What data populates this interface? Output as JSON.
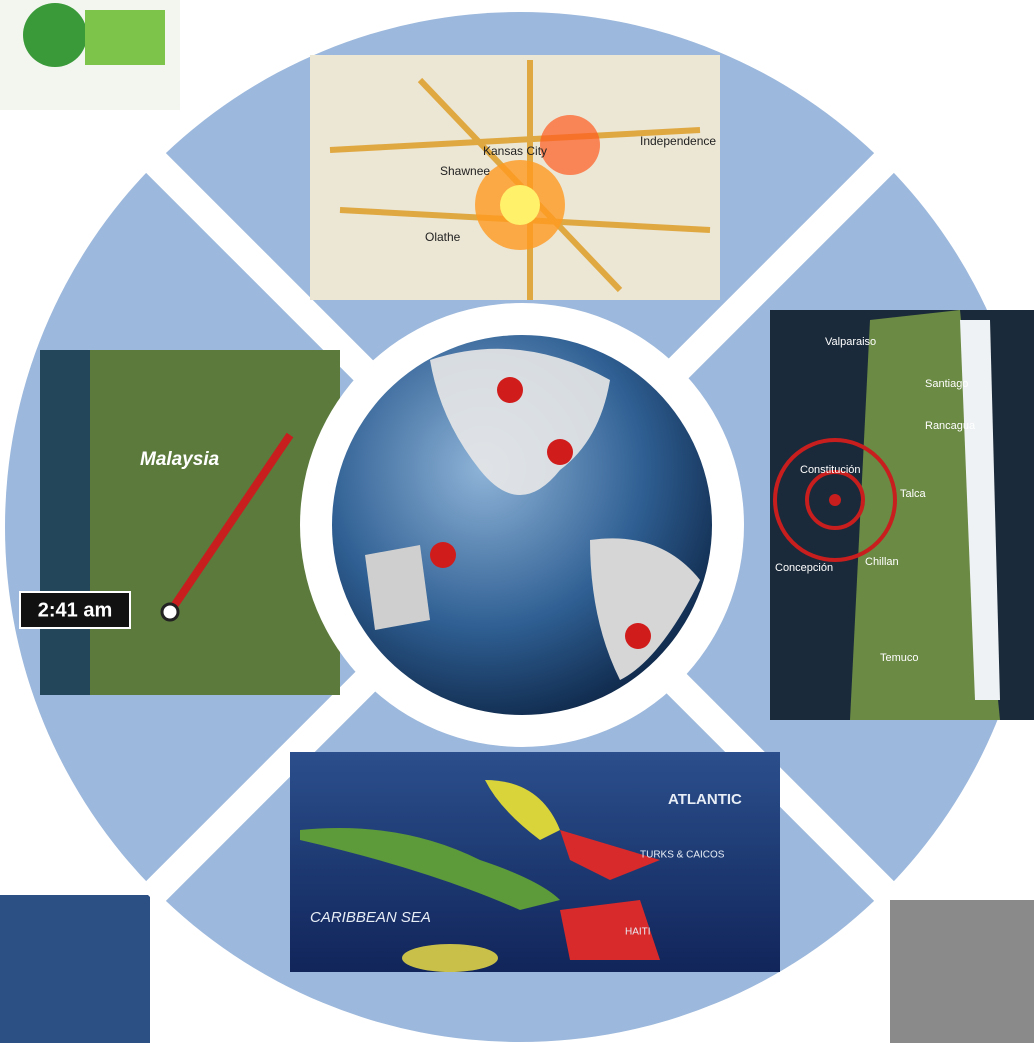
{
  "top_map": {
    "labels": [
      "Kansas City",
      "Independence",
      "Shawnee",
      "Olathe"
    ]
  },
  "left_map": {
    "place": "Malaysia",
    "time": "2:41 am"
  },
  "right_map": {
    "labels": [
      "Valparaiso",
      "Santiago",
      "Rancagua",
      "Talca",
      "Constitución",
      "Concepción",
      "Chillan",
      "Temuco"
    ]
  },
  "bottom_map": {
    "labels": [
      "ATLANTIC",
      "TURKS & CAICOS",
      "HAITI",
      "CARIBBEAN SEA"
    ]
  }
}
